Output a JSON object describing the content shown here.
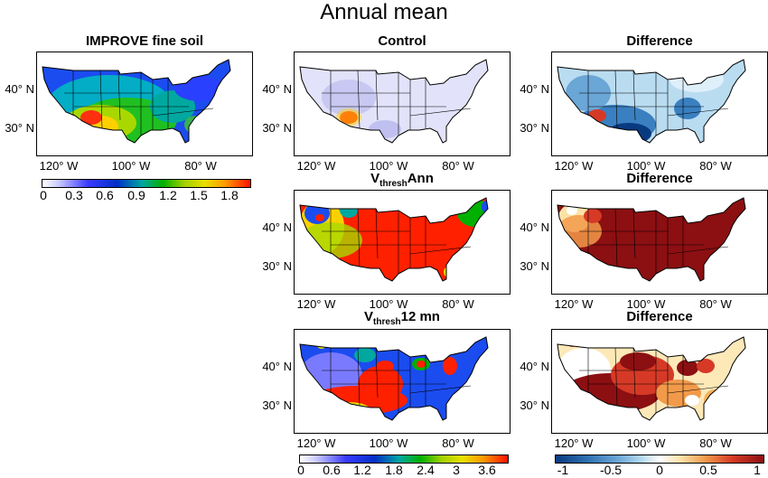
{
  "figure": {
    "title": "Annual mean",
    "panels": {
      "improve": "IMPROVE fine soil",
      "control": "Control",
      "diff_control": "Difference",
      "vthresh_ann_sub": "thresh",
      "vthresh_ann_suffix": "Ann",
      "diff_ann": "Difference",
      "vthresh_12_sub": "thresh",
      "vthresh_12_suffix": "12 mn",
      "diff_12": "Difference",
      "v_prefix": "V"
    },
    "lat_labels": [
      "40° N",
      "30° N"
    ],
    "lon_labels": [
      "120° W",
      "100° W",
      "80° W"
    ]
  },
  "colorbars": {
    "improve_ticks": [
      "0",
      "0.3",
      "0.6",
      "0.9",
      "1.2",
      "1.5",
      "1.8"
    ],
    "model_ticks": [
      "0",
      "0.6",
      "1.2",
      "1.8",
      "2.4",
      "3",
      "3.6"
    ],
    "diff_ticks": [
      "-1",
      "-0.5",
      "0",
      "0.5",
      "1"
    ]
  },
  "colors": {
    "improve_scale": [
      "#ffffff",
      "#b7b7ff",
      "#3a3aff",
      "#0030d0",
      "#00a8a0",
      "#00b000",
      "#9fd000",
      "#e8e000",
      "#ff9a00",
      "#ff2000"
    ],
    "diff_scale": [
      "#083a80",
      "#2f6fb0",
      "#6aa6d6",
      "#b9dcf1",
      "#ffffff",
      "#fde8b8",
      "#f7b25a",
      "#d8442a",
      "#8c0f12"
    ]
  }
}
